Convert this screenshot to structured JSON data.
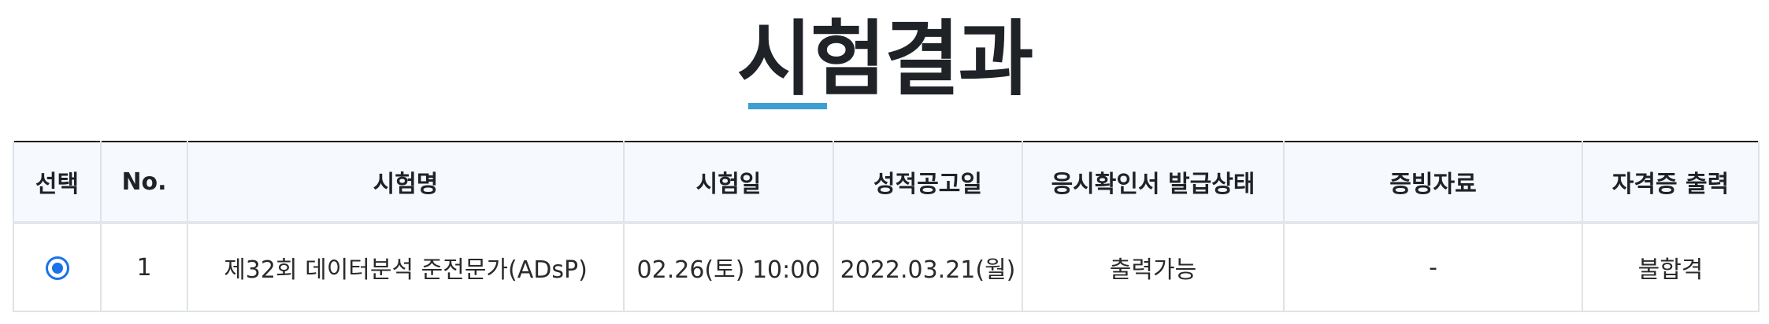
{
  "page": {
    "title": "시험결과",
    "accent_color": "#3b9fd2"
  },
  "table": {
    "columns": [
      "선택",
      "No.",
      "시험명",
      "시험일",
      "성적공고일",
      "응시확인서 발급상태",
      "증빙자료",
      "자격증 출력"
    ],
    "rows": [
      {
        "selected": true,
        "no": "1",
        "exam_name": "제32회 데이터분석 준전문가(ADsP)",
        "exam_date": "02.26(토) 10:00",
        "announce_date": "2022.03.21(월)",
        "certificate_status": "출력가능",
        "evidence": "-",
        "license_print": "불합격"
      }
    ]
  }
}
